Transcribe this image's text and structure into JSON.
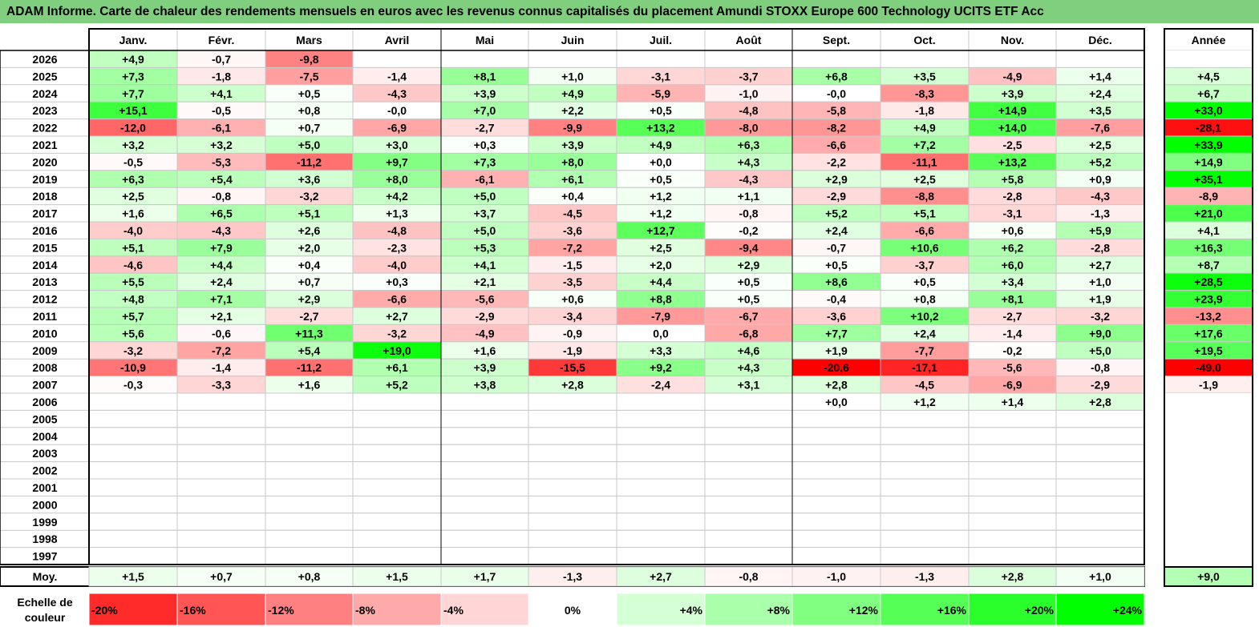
{
  "chart_data": {
    "type": "heatmap",
    "title": "ADAM Informe. Carte de chaleur des rendements mensuels en euros avec les revenus connus capitalisés du placement Amundi STOXX Europe 600 Technology UCITS ETF Acc",
    "months": [
      "Janv.",
      "Févr.",
      "Mars",
      "Avril",
      "Mai",
      "Juin",
      "Juil.",
      "Août",
      "Sept.",
      "Oct.",
      "Nov.",
      "Déc."
    ],
    "year_header": "Année",
    "years": [
      2026,
      2025,
      2024,
      2023,
      2022,
      2021,
      2020,
      2019,
      2018,
      2017,
      2016,
      2015,
      2014,
      2013,
      2012,
      2011,
      2010,
      2009,
      2008,
      2007,
      2006,
      2005,
      2004,
      2003,
      2002,
      2001,
      2000,
      1999,
      1998,
      1997
    ],
    "monthly": [
      [
        "+4,9",
        "-0,7",
        "-9,8",
        "",
        "",
        "",
        "",
        "",
        "",
        "",
        "",
        ""
      ],
      [
        "+7,3",
        "-1,8",
        "-7,5",
        "-1,4",
        "+8,1",
        "+1,0",
        "-3,1",
        "-3,7",
        "+6,8",
        "+3,5",
        "-4,9",
        "+1,4"
      ],
      [
        "+7,7",
        "+4,1",
        "+0,5",
        "-4,3",
        "+3,9",
        "+4,9",
        "-5,9",
        "-1,0",
        "-0,0",
        "-8,3",
        "+3,9",
        "+2,4"
      ],
      [
        "+15,1",
        "-0,5",
        "+0,8",
        "-0,0",
        "+7,0",
        "+2,2",
        "+0,5",
        "-4,8",
        "-5,8",
        "-1,8",
        "+14,9",
        "+3,5"
      ],
      [
        "-12,0",
        "-6,1",
        "+0,7",
        "-6,9",
        "-2,7",
        "-9,9",
        "+13,2",
        "-8,0",
        "-8,2",
        "+4,9",
        "+14,0",
        "-7,6"
      ],
      [
        "+3,2",
        "+3,2",
        "+5,0",
        "+3,0",
        "+0,3",
        "+3,9",
        "+4,9",
        "+6,3",
        "-6,6",
        "+7,2",
        "-2,5",
        "+2,5"
      ],
      [
        "-0,5",
        "-5,3",
        "-11,2",
        "+9,7",
        "+7,3",
        "+8,0",
        "+0,0",
        "+4,3",
        "-2,2",
        "-11,1",
        "+13,2",
        "+5,2"
      ],
      [
        "+6,3",
        "+5,4",
        "+3,6",
        "+8,0",
        "-6,1",
        "+6,1",
        "+0,5",
        "-4,3",
        "+2,9",
        "+2,5",
        "+5,8",
        "+0,9"
      ],
      [
        "+2,5",
        "-0,8",
        "-3,2",
        "+4,2",
        "+5,0",
        "+0,4",
        "+1,2",
        "+1,1",
        "-2,9",
        "-8,8",
        "-2,8",
        "-4,3"
      ],
      [
        "+1,6",
        "+6,5",
        "+5,1",
        "+1,3",
        "+3,7",
        "-4,5",
        "+1,2",
        "-0,8",
        "+5,2",
        "+5,1",
        "-3,1",
        "-1,3"
      ],
      [
        "-4,0",
        "-4,3",
        "+2,6",
        "-4,8",
        "+5,0",
        "-3,6",
        "+12,7",
        "-0,2",
        "+2,4",
        "-6,6",
        "+0,6",
        "+5,9"
      ],
      [
        "+5,1",
        "+7,9",
        "+2,0",
        "-2,3",
        "+5,3",
        "-7,2",
        "+2,5",
        "-9,4",
        "-0,7",
        "+10,6",
        "+6,2",
        "-2,8"
      ],
      [
        "-4,6",
        "+4,4",
        "+0,4",
        "-4,0",
        "+4,1",
        "-1,5",
        "+2,0",
        "+2,9",
        "+0,5",
        "-3,7",
        "+6,0",
        "+2,7"
      ],
      [
        "+5,5",
        "+2,4",
        "+0,7",
        "+0,3",
        "+2,1",
        "-3,5",
        "+4,4",
        "+0,5",
        "+8,6",
        "+0,5",
        "+3,4",
        "+1,0"
      ],
      [
        "+4,8",
        "+7,1",
        "+2,9",
        "-6,6",
        "-5,6",
        "+0,6",
        "+8,8",
        "+0,5",
        "-0,4",
        "+0,8",
        "+8,1",
        "+1,9"
      ],
      [
        "+5,7",
        "+2,1",
        "-2,7",
        "+2,7",
        "-2,9",
        "-3,4",
        "-7,9",
        "-6,7",
        "-3,6",
        "+10,2",
        "-2,7",
        "-3,2"
      ],
      [
        "+5,6",
        "-0,6",
        "+11,3",
        "-3,2",
        "-4,9",
        "-0,9",
        "0,0",
        "-6,8",
        "+7,7",
        "+2,4",
        "-1,4",
        "+9,0"
      ],
      [
        "-3,2",
        "-7,2",
        "+5,4",
        "+19,0",
        "+1,6",
        "-1,9",
        "+3,3",
        "+4,6",
        "+1,9",
        "-7,7",
        "-0,2",
        "+5,0"
      ],
      [
        "-10,9",
        "-1,4",
        "-11,2",
        "+6,1",
        "+3,9",
        "-15,5",
        "+9,2",
        "+4,3",
        "-20,6",
        "-17,1",
        "-5,6",
        "-0,8"
      ],
      [
        "-0,3",
        "-3,3",
        "+1,6",
        "+5,2",
        "+3,8",
        "+2,8",
        "-2,4",
        "+3,1",
        "+2,8",
        "-4,5",
        "-6,9",
        "-2,9"
      ],
      [
        "",
        "",
        "",
        "",
        "",
        "",
        "",
        "",
        "+0,0",
        "+1,2",
        "+1,4",
        "+2,8"
      ],
      [
        "",
        "",
        "",
        "",
        "",
        "",
        "",
        "",
        "",
        "",
        "",
        ""
      ],
      [
        "",
        "",
        "",
        "",
        "",
        "",
        "",
        "",
        "",
        "",
        "",
        ""
      ],
      [
        "",
        "",
        "",
        "",
        "",
        "",
        "",
        "",
        "",
        "",
        "",
        ""
      ],
      [
        "",
        "",
        "",
        "",
        "",
        "",
        "",
        "",
        "",
        "",
        "",
        ""
      ],
      [
        "",
        "",
        "",
        "",
        "",
        "",
        "",
        "",
        "",
        "",
        "",
        ""
      ],
      [
        "",
        "",
        "",
        "",
        "",
        "",
        "",
        "",
        "",
        "",
        "",
        ""
      ],
      [
        "",
        "",
        "",
        "",
        "",
        "",
        "",
        "",
        "",
        "",
        "",
        ""
      ],
      [
        "",
        "",
        "",
        "",
        "",
        "",
        "",
        "",
        "",
        "",
        "",
        ""
      ],
      [
        "",
        "",
        "",
        "",
        "",
        "",
        "",
        "",
        "",
        "",
        "",
        ""
      ]
    ],
    "annual": [
      "",
      "+4,5",
      "+6,7",
      "+33,0",
      "-28,1",
      "+33,9",
      "+14,9",
      "+35,1",
      "-8,9",
      "+21,0",
      "+4,1",
      "+16,3",
      "+8,7",
      "+28,5",
      "+23,9",
      "-13,2",
      "+17,6",
      "+19,5",
      "-49,0",
      "-1,9",
      "",
      "",
      "",
      "",
      "",
      "",
      "",
      "",
      "",
      ""
    ],
    "average_label": "Moy.",
    "average_monthly": [
      "+1,5",
      "+0,7",
      "+0,8",
      "+1,5",
      "+1,7",
      "-1,3",
      "+2,7",
      "-0,8",
      "-1,0",
      "-1,3",
      "+2,8",
      "+1,0"
    ],
    "average_annual": "+9,0",
    "scale_label": "Echelle de couleur",
    "scale": [
      {
        "label": "-20%",
        "value": -20
      },
      {
        "label": "-16%",
        "value": -16
      },
      {
        "label": "-12%",
        "value": -12
      },
      {
        "label": "-8%",
        "value": -8
      },
      {
        "label": "-4%",
        "value": -4
      },
      {
        "label": "0%",
        "value": 0
      },
      {
        "label": "+4%",
        "value": 4
      },
      {
        "label": "+8%",
        "value": 8
      },
      {
        "label": "+12%",
        "value": 12
      },
      {
        "label": "+16%",
        "value": 16
      },
      {
        "label": "+20%",
        "value": 20
      },
      {
        "label": "+24%",
        "value": 24
      }
    ],
    "colors": {
      "negative_max": "#ff0000",
      "neutral": "#ffffff",
      "positive_max": "#00ff00",
      "title_bar": "#7fcf7f",
      "grid": "#c8c8c8",
      "border": "#000000"
    }
  }
}
